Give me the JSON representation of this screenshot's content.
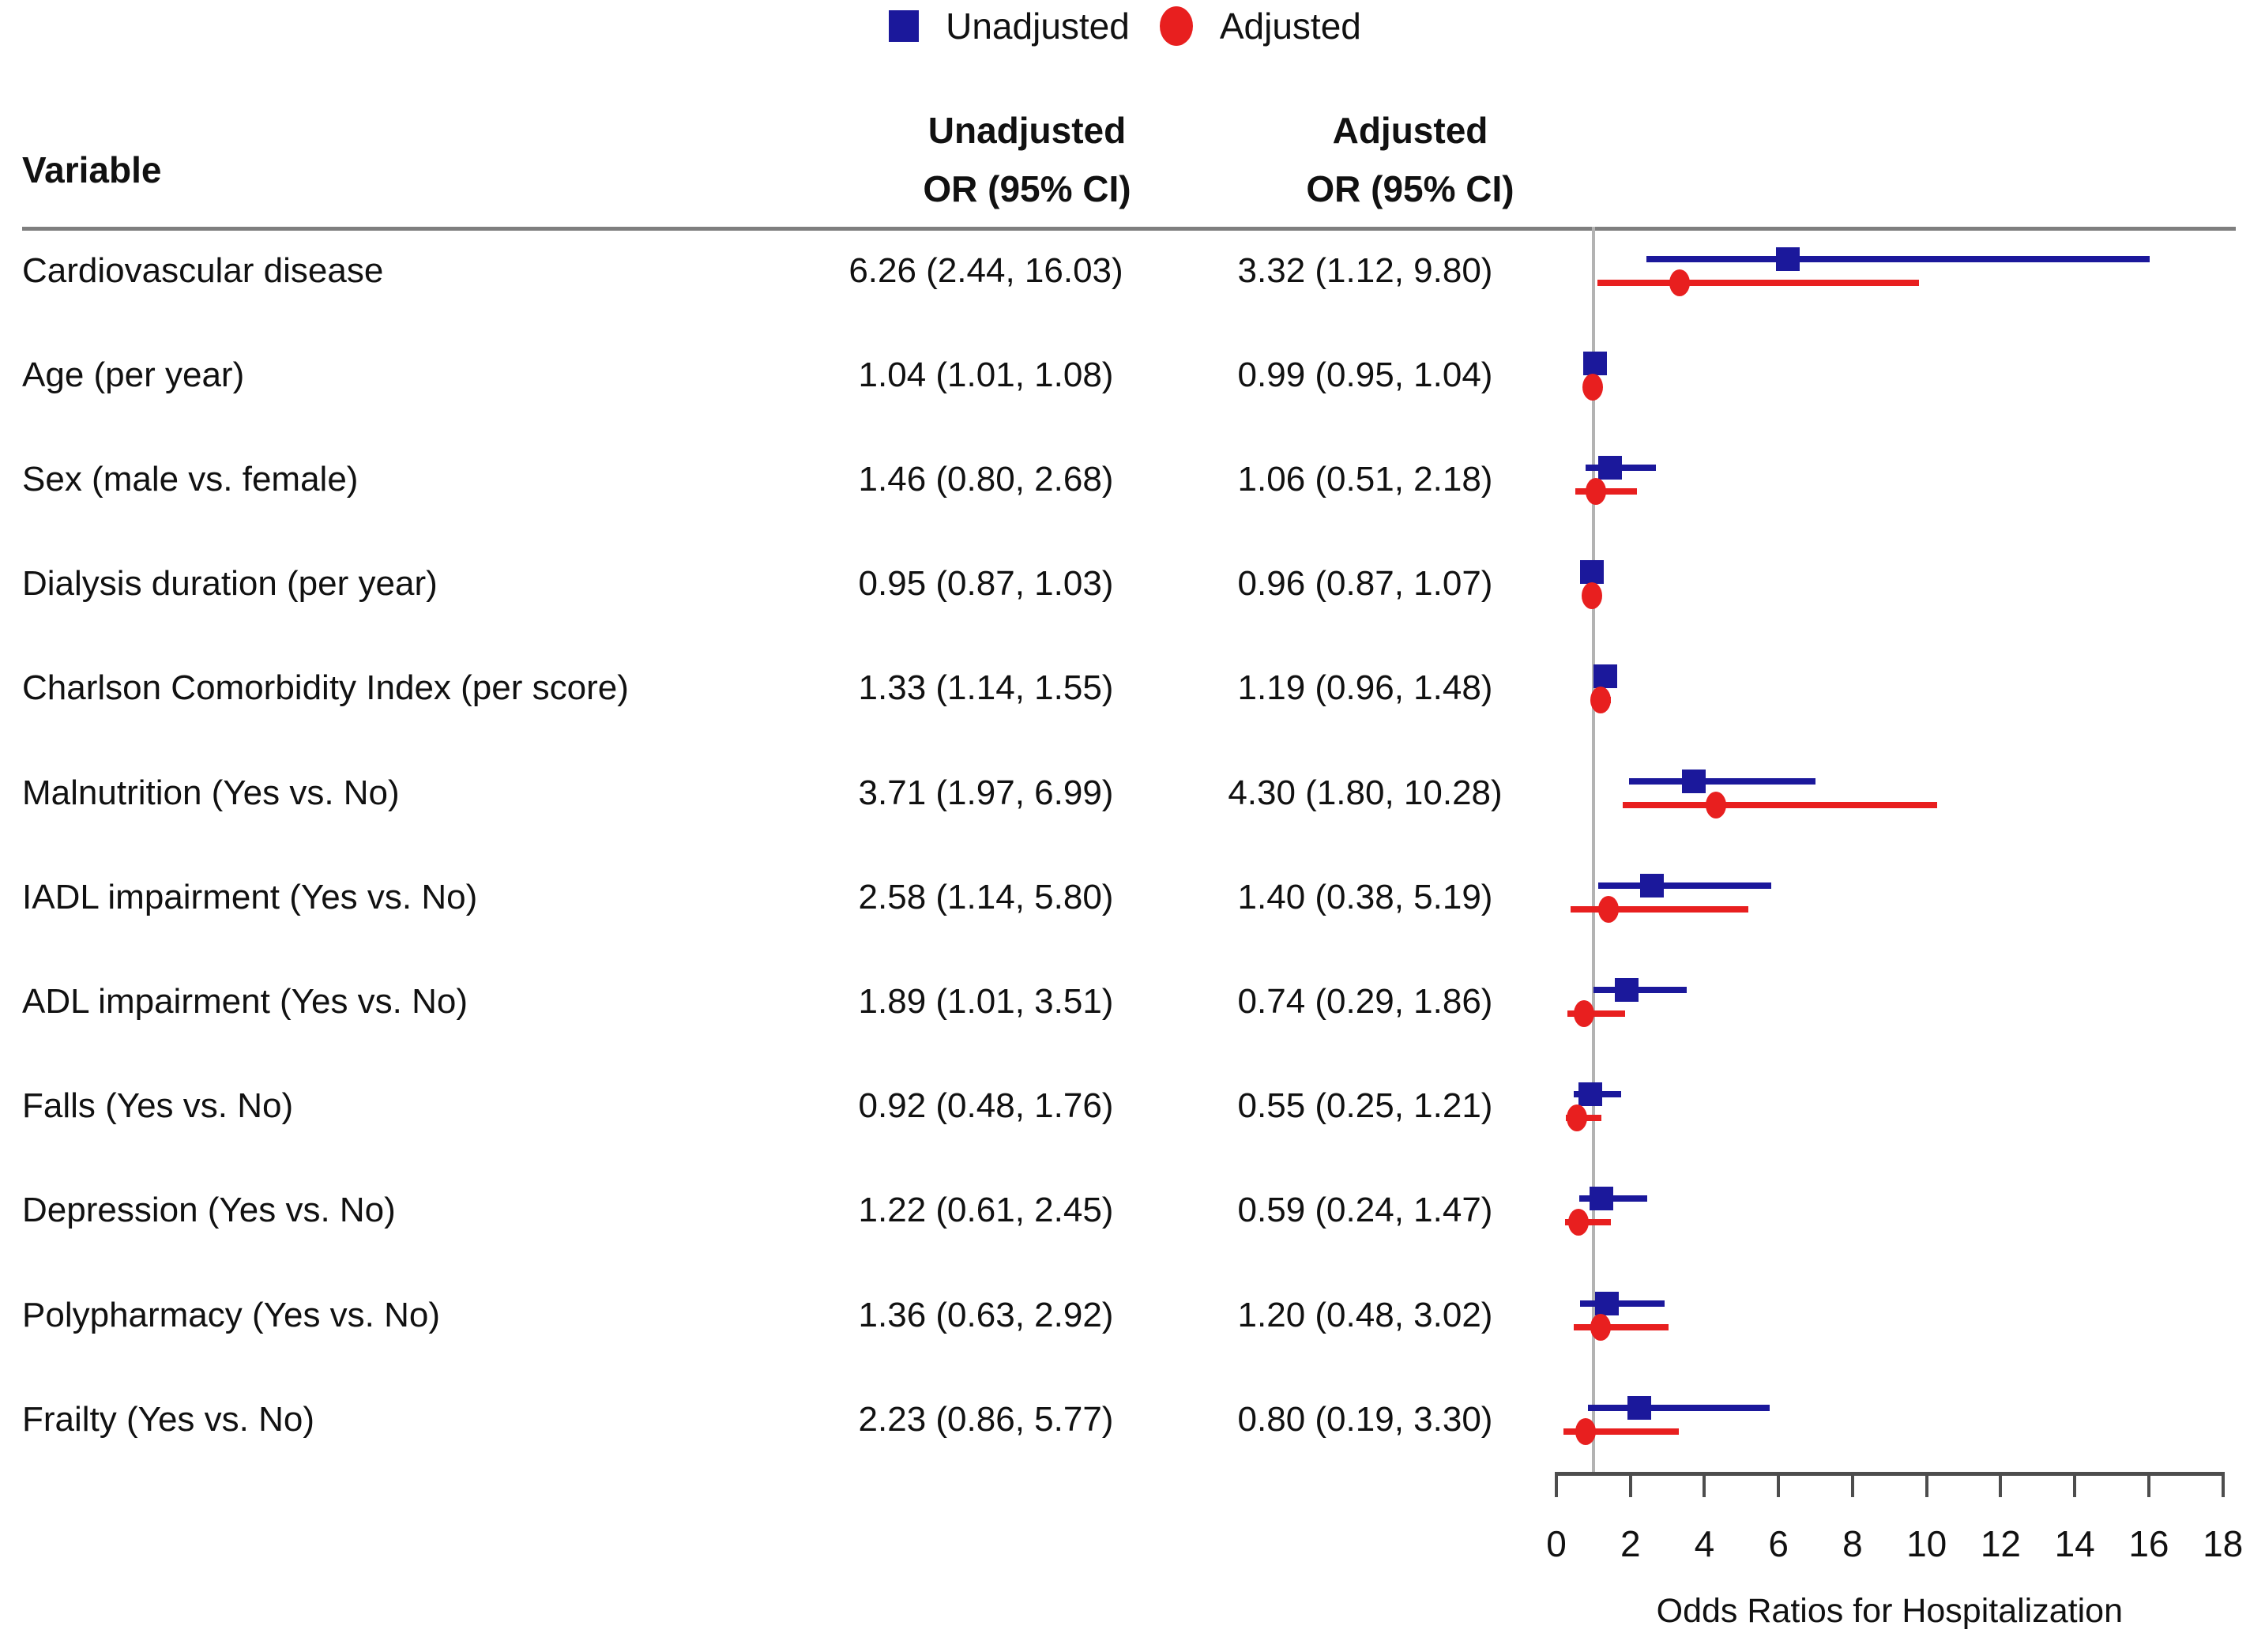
{
  "legend": {
    "items": [
      {
        "label": "Unadjusted",
        "marker": "square",
        "color": "#1b189b"
      },
      {
        "label": "Adjusted",
        "marker": "circle",
        "color": "#e81f1f"
      }
    ]
  },
  "table_headers": {
    "variable": "Variable",
    "unadjusted_line1": "Unadjusted",
    "unadjusted_line2": "OR (95% CI)",
    "adjusted_line1": "Adjusted",
    "adjusted_line2": "OR (95% CI)"
  },
  "chart_data": {
    "type": "scatter",
    "subtype": "forest-plot",
    "xlabel": "Odds Ratios for Hospitalization",
    "xlim": [
      0,
      18
    ],
    "xticks": [
      0,
      2,
      4,
      6,
      8,
      10,
      12,
      14,
      16,
      18
    ],
    "reference_line_x": 1,
    "grid": false,
    "legend_position": "top-center",
    "series": [
      {
        "name": "Unadjusted",
        "marker": "square",
        "color": "#1b189b"
      },
      {
        "name": "Adjusted",
        "marker": "circle",
        "color": "#e81f1f"
      }
    ],
    "rows": [
      {
        "variable": "Cardiovascular disease",
        "unadjusted": {
          "or": 6.26,
          "lo": 2.44,
          "hi": 16.03,
          "label": "6.26 (2.44, 16.03)"
        },
        "adjusted": {
          "or": 3.32,
          "lo": 1.12,
          "hi": 9.8,
          "label": "3.32 (1.12, 9.80)"
        }
      },
      {
        "variable": "Age (per year)",
        "unadjusted": {
          "or": 1.04,
          "lo": 1.01,
          "hi": 1.08,
          "label": "1.04 (1.01, 1.08)"
        },
        "adjusted": {
          "or": 0.99,
          "lo": 0.95,
          "hi": 1.04,
          "label": "0.99 (0.95, 1.04)"
        }
      },
      {
        "variable": "Sex (male vs. female)",
        "unadjusted": {
          "or": 1.46,
          "lo": 0.8,
          "hi": 2.68,
          "label": "1.46 (0.80, 2.68)"
        },
        "adjusted": {
          "or": 1.06,
          "lo": 0.51,
          "hi": 2.18,
          "label": "1.06 (0.51, 2.18)"
        }
      },
      {
        "variable": "Dialysis duration (per year)",
        "unadjusted": {
          "or": 0.95,
          "lo": 0.87,
          "hi": 1.03,
          "label": "0.95 (0.87, 1.03)"
        },
        "adjusted": {
          "or": 0.96,
          "lo": 0.87,
          "hi": 1.07,
          "label": "0.96 (0.87, 1.07)"
        }
      },
      {
        "variable": "Charlson Comorbidity Index (per score)",
        "unadjusted": {
          "or": 1.33,
          "lo": 1.14,
          "hi": 1.55,
          "label": "1.33 (1.14, 1.55)"
        },
        "adjusted": {
          "or": 1.19,
          "lo": 0.96,
          "hi": 1.48,
          "label": "1.19 (0.96, 1.48)"
        }
      },
      {
        "variable": "Malnutrition (Yes vs. No)",
        "unadjusted": {
          "or": 3.71,
          "lo": 1.97,
          "hi": 6.99,
          "label": "3.71 (1.97, 6.99)"
        },
        "adjusted": {
          "or": 4.3,
          "lo": 1.8,
          "hi": 10.28,
          "label": "4.30 (1.80, 10.28)"
        }
      },
      {
        "variable": "IADL impairment (Yes vs. No)",
        "unadjusted": {
          "or": 2.58,
          "lo": 1.14,
          "hi": 5.8,
          "label": "2.58 (1.14, 5.80)"
        },
        "adjusted": {
          "or": 1.4,
          "lo": 0.38,
          "hi": 5.19,
          "label": "1.40 (0.38, 5.19)"
        }
      },
      {
        "variable": "ADL impairment (Yes vs. No)",
        "unadjusted": {
          "or": 1.89,
          "lo": 1.01,
          "hi": 3.51,
          "label": "1.89 (1.01, 3.51)"
        },
        "adjusted": {
          "or": 0.74,
          "lo": 0.29,
          "hi": 1.86,
          "label": "0.74 (0.29, 1.86)"
        }
      },
      {
        "variable": "Falls (Yes vs. No)",
        "unadjusted": {
          "or": 0.92,
          "lo": 0.48,
          "hi": 1.76,
          "label": "0.92 (0.48, 1.76)"
        },
        "adjusted": {
          "or": 0.55,
          "lo": 0.25,
          "hi": 1.21,
          "label": "0.55 (0.25, 1.21)"
        }
      },
      {
        "variable": "Depression (Yes vs. No)",
        "unadjusted": {
          "or": 1.22,
          "lo": 0.61,
          "hi": 2.45,
          "label": "1.22 (0.61, 2.45)"
        },
        "adjusted": {
          "or": 0.59,
          "lo": 0.24,
          "hi": 1.47,
          "label": "0.59 (0.24, 1.47)"
        }
      },
      {
        "variable": "Polypharmacy (Yes vs. No)",
        "unadjusted": {
          "or": 1.36,
          "lo": 0.63,
          "hi": 2.92,
          "label": "1.36 (0.63, 2.92)"
        },
        "adjusted": {
          "or": 1.2,
          "lo": 0.48,
          "hi": 3.02,
          "label": "1.20 (0.48, 3.02)"
        }
      },
      {
        "variable": "Frailty (Yes vs. No)",
        "unadjusted": {
          "or": 2.23,
          "lo": 0.86,
          "hi": 5.77,
          "label": "2.23 (0.86, 5.77)"
        },
        "adjusted": {
          "or": 0.8,
          "lo": 0.19,
          "hi": 3.3,
          "label": "0.80 (0.19, 3.30)"
        }
      }
    ]
  },
  "colors": {
    "navy": "#1b189b",
    "red": "#e81f1f",
    "top_rule": "#7f7f7f",
    "reference_line": "#b3b3b3",
    "axis": "#4d4d4d",
    "text": "#111111"
  }
}
